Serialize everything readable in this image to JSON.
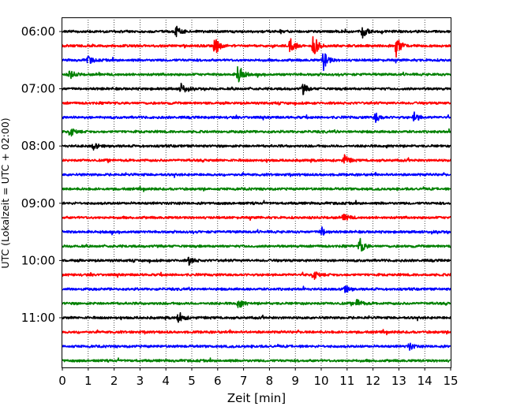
{
  "chart_data": {
    "type": "line",
    "subtype": "helicorder",
    "xlabel": "Zeit  [min]",
    "ylabel": "UTC (Lokalzeit = UTC + 02:00)",
    "xlim": [
      0,
      15
    ],
    "x_ticks": [
      0,
      1,
      2,
      3,
      4,
      5,
      6,
      7,
      8,
      9,
      10,
      11,
      12,
      13,
      14,
      15
    ],
    "y_tick_labels": [
      "06:00",
      "07:00",
      "08:00",
      "09:00",
      "10:00",
      "11:00"
    ],
    "vertical_grid": "dotted",
    "line_colors": [
      "#000000",
      "#ff0000",
      "#0000ff",
      "#008000"
    ],
    "trace_start_times": [
      "06:00",
      "06:15",
      "06:30",
      "06:45",
      "07:00",
      "07:15",
      "07:30",
      "07:45",
      "08:00",
      "08:15",
      "08:30",
      "08:45",
      "09:00",
      "09:15",
      "09:30",
      "09:45",
      "10:00",
      "10:15",
      "10:30",
      "10:45",
      "11:00",
      "11:15",
      "11:30",
      "11:45"
    ],
    "events": [
      {
        "trace": 0,
        "min": 4.4,
        "amp": 0.35
      },
      {
        "trace": 0,
        "min": 11.6,
        "amp": 0.4
      },
      {
        "trace": 1,
        "min": 5.9,
        "amp": 0.7
      },
      {
        "trace": 1,
        "min": 8.8,
        "amp": 0.6
      },
      {
        "trace": 1,
        "min": 9.7,
        "amp": 0.85
      },
      {
        "trace": 1,
        "min": 12.9,
        "amp": 0.75
      },
      {
        "trace": 2,
        "min": 10.1,
        "amp": 0.75
      },
      {
        "trace": 2,
        "min": 1.0,
        "amp": 0.3
      },
      {
        "trace": 3,
        "min": 6.8,
        "amp": 0.8
      },
      {
        "trace": 3,
        "min": 0.3,
        "amp": 0.3
      },
      {
        "trace": 4,
        "min": 4.6,
        "amp": 0.4
      },
      {
        "trace": 4,
        "min": 9.3,
        "amp": 0.35
      },
      {
        "trace": 6,
        "min": 12.1,
        "amp": 0.35
      },
      {
        "trace": 6,
        "min": 13.6,
        "amp": 0.35
      },
      {
        "trace": 7,
        "min": 0.3,
        "amp": 0.35
      },
      {
        "trace": 8,
        "min": 1.2,
        "amp": 0.25
      },
      {
        "trace": 9,
        "min": 10.9,
        "amp": 0.35
      },
      {
        "trace": 13,
        "min": 10.9,
        "amp": 0.3
      },
      {
        "trace": 14,
        "min": 10.0,
        "amp": 0.35
      },
      {
        "trace": 15,
        "min": 11.5,
        "amp": 0.6
      },
      {
        "trace": 16,
        "min": 4.9,
        "amp": 0.3
      },
      {
        "trace": 17,
        "min": 9.7,
        "amp": 0.35
      },
      {
        "trace": 18,
        "min": 10.9,
        "amp": 0.3
      },
      {
        "trace": 19,
        "min": 6.8,
        "amp": 0.35
      },
      {
        "trace": 19,
        "min": 11.4,
        "amp": 0.3
      },
      {
        "trace": 20,
        "min": 4.5,
        "amp": 0.45
      },
      {
        "trace": 22,
        "min": 13.4,
        "amp": 0.25
      }
    ]
  }
}
